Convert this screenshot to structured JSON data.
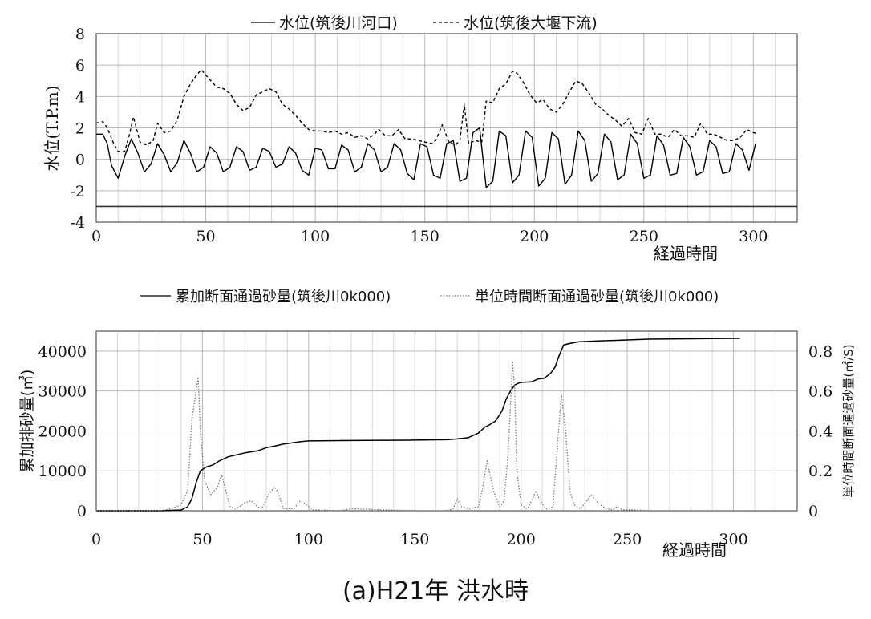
{
  "caption": "(a)H21年 洪水時",
  "chart_data": [
    {
      "type": "line",
      "ylabel": "水位(T.P.m)",
      "xlabel": "経過時間",
      "xlim": [
        0,
        320
      ],
      "ylim": [
        -4,
        8
      ],
      "xticks": [
        0,
        50,
        100,
        150,
        200,
        250,
        300
      ],
      "yticks": [
        -4,
        -2,
        0,
        2,
        4,
        6,
        8
      ],
      "grid": true,
      "legend_position": "top",
      "horizontal_line": -3,
      "series": [
        {
          "name": "水位(筑後川河口)",
          "style": "solid",
          "x": [
            0,
            3,
            5,
            7,
            10,
            13,
            16,
            19,
            22,
            25,
            28,
            31,
            34,
            37,
            40,
            43,
            46,
            49,
            52,
            55,
            58,
            61,
            64,
            67,
            70,
            73,
            76,
            79,
            82,
            85,
            88,
            91,
            94,
            97,
            100,
            103,
            106,
            109,
            112,
            115,
            118,
            121,
            124,
            127,
            130,
            133,
            136,
            139,
            142,
            145,
            148,
            151,
            154,
            157,
            160,
            163,
            166,
            169,
            172,
            175,
            178,
            181,
            184,
            187,
            190,
            193,
            196,
            199,
            202,
            205,
            208,
            211,
            214,
            217,
            220,
            223,
            226,
            229,
            232,
            235,
            238,
            241,
            244,
            247,
            250,
            253,
            256,
            259,
            262,
            265,
            268,
            271,
            274,
            277,
            280,
            283,
            286,
            289,
            292,
            295,
            298,
            301
          ],
          "values": [
            1.6,
            1.6,
            1.0,
            -0.4,
            -1.2,
            0.2,
            1.3,
            0.4,
            -0.8,
            -0.3,
            1.0,
            0.3,
            -0.8,
            -0.2,
            1.2,
            0.4,
            -0.8,
            -0.5,
            0.8,
            0.4,
            -0.8,
            -0.5,
            0.8,
            0.5,
            -0.7,
            -0.5,
            0.7,
            0.5,
            -0.5,
            -0.3,
            0.8,
            0.4,
            -0.7,
            -1.0,
            0.7,
            0.6,
            -0.6,
            -0.6,
            0.9,
            0.6,
            -0.8,
            -0.5,
            1.0,
            0.6,
            -0.8,
            -0.5,
            1.0,
            0.6,
            -0.9,
            -1.3,
            1.0,
            0.8,
            -1.0,
            -1.2,
            1.0,
            1.2,
            -1.4,
            -1.2,
            1.7,
            2.0,
            -1.8,
            -1.4,
            1.8,
            1.5,
            -1.5,
            -1.0,
            1.8,
            1.4,
            -1.7,
            -1.2,
            1.7,
            1.3,
            -1.6,
            -1.0,
            1.8,
            1.2,
            -1.4,
            -0.9,
            1.6,
            1.1,
            -1.3,
            -1.0,
            1.6,
            1.0,
            -1.2,
            -1.0,
            1.5,
            0.9,
            -1.0,
            -0.9,
            1.4,
            0.8,
            -1.0,
            -0.8,
            1.2,
            0.8,
            -0.9,
            -0.8,
            1.0,
            0.6,
            -0.7,
            1.0
          ]
        },
        {
          "name": "水位(筑後大堰下流)",
          "style": "dashed",
          "x": [
            0,
            3,
            5,
            8,
            10,
            13,
            15,
            17,
            20,
            23,
            26,
            28,
            31,
            34,
            37,
            40,
            43,
            46,
            48,
            51,
            55,
            58,
            61,
            64,
            67,
            70,
            73,
            76,
            79,
            82,
            85,
            88,
            91,
            94,
            97,
            100,
            103,
            106,
            109,
            112,
            115,
            118,
            121,
            124,
            127,
            129,
            132,
            135,
            138,
            141,
            144,
            147,
            150,
            153,
            155,
            158,
            161,
            164,
            166,
            168,
            170,
            173,
            176,
            178,
            181,
            184,
            187,
            190,
            192,
            195,
            198,
            201,
            204,
            207,
            210,
            213,
            216,
            219,
            222,
            225,
            228,
            231,
            234,
            237,
            240,
            243,
            246,
            249,
            252,
            255,
            258,
            261,
            264,
            267,
            270,
            273,
            276,
            279,
            282,
            285,
            288,
            291,
            294,
            297,
            300,
            302
          ],
          "values": [
            2.3,
            2.4,
            2.0,
            1.0,
            0.5,
            0.5,
            1.5,
            2.7,
            1.1,
            0.9,
            1.2,
            2.3,
            1.7,
            1.8,
            2.5,
            4.0,
            4.8,
            5.4,
            5.7,
            5.2,
            4.6,
            4.5,
            4.2,
            3.5,
            3.1,
            3.3,
            4.1,
            4.3,
            4.5,
            4.3,
            3.5,
            3.2,
            2.8,
            2.3,
            1.9,
            1.8,
            1.8,
            1.7,
            1.8,
            1.6,
            1.7,
            1.4,
            1.5,
            1.3,
            1.6,
            1.9,
            1.5,
            1.5,
            1.9,
            1.3,
            1.3,
            1.2,
            1.1,
            1.0,
            1.2,
            2.2,
            1.1,
            0.9,
            1.2,
            3.5,
            1.0,
            1.2,
            1.1,
            3.7,
            3.6,
            4.5,
            4.8,
            5.6,
            5.5,
            4.9,
            4.1,
            3.6,
            3.8,
            3.2,
            3.0,
            3.5,
            4.3,
            5.0,
            4.8,
            4.2,
            3.5,
            3.2,
            2.8,
            2.5,
            2.1,
            2.6,
            1.7,
            1.6,
            2.6,
            1.6,
            1.6,
            1.4,
            1.9,
            1.5,
            1.5,
            1.4,
            2.3,
            1.6,
            1.6,
            1.4,
            1.2,
            1.2,
            1.4,
            1.9,
            1.7,
            1.6
          ]
        }
      ]
    },
    {
      "type": "line",
      "ylabel": "累加排砂量(㎥)",
      "y2label": "単位時間断面通過砂量(㎥/S)",
      "xlabel": "経過時間",
      "xlim": [
        0,
        330
      ],
      "ylim": [
        0,
        45000
      ],
      "y2lim": [
        0,
        0.9
      ],
      "xticks": [
        0,
        50,
        100,
        150,
        200,
        250,
        300
      ],
      "yticks": [
        0,
        10000,
        20000,
        30000,
        40000
      ],
      "y2ticks": [
        0,
        0.2,
        0.4,
        0.6,
        0.8
      ],
      "y2ticklabels": [
        "0",
        "0.2",
        "0.4",
        "0.6",
        "0.8"
      ],
      "grid": true,
      "legend_position": "top",
      "series": [
        {
          "name": "累加断面通過砂量(筑後川0k000)",
          "style": "solid",
          "axis": "left",
          "x": [
            0,
            30,
            40,
            43,
            45,
            47,
            49,
            52,
            55,
            58,
            62,
            66,
            70,
            76,
            80,
            84,
            88,
            92,
            96,
            100,
            120,
            150,
            165,
            170,
            175,
            178,
            180,
            183,
            185,
            188,
            191,
            193,
            195,
            197,
            199,
            201,
            205,
            208,
            211,
            214,
            216,
            218,
            220,
            222,
            224,
            227,
            235,
            250,
            260,
            280,
            303
          ],
          "values": [
            0,
            0,
            200,
            1000,
            3000,
            7000,
            10000,
            11000,
            11500,
            12500,
            13500,
            14000,
            14500,
            15000,
            15800,
            16200,
            16700,
            17000,
            17300,
            17500,
            17600,
            17700,
            17800,
            18000,
            18300,
            19000,
            19500,
            21000,
            21500,
            22500,
            25000,
            28000,
            30000,
            31500,
            32000,
            32200,
            32300,
            33000,
            33200,
            34500,
            36000,
            39000,
            41500,
            41800,
            42000,
            42300,
            42500,
            42800,
            43000,
            43100,
            43200
          ]
        },
        {
          "name": "単位時間断面通過砂量(筑後川0k000)",
          "style": "dotted",
          "axis": "right",
          "x": [
            0,
            30,
            35,
            40,
            43,
            45,
            47,
            48,
            49,
            51,
            54,
            57,
            59,
            61,
            63,
            66,
            70,
            73,
            76,
            78,
            81,
            84,
            86,
            88,
            93,
            96,
            99,
            102,
            115,
            120,
            150,
            165,
            168,
            170,
            172,
            175,
            180,
            182,
            184,
            185,
            187,
            190,
            192,
            194,
            196,
            197,
            198,
            200,
            203,
            205,
            207,
            209,
            212,
            215,
            218,
            219,
            221,
            223,
            225,
            228,
            231,
            233,
            236,
            240,
            243,
            245,
            248,
            252,
            260,
            300,
            303
          ],
          "values": [
            0,
            0,
            0.01,
            0.03,
            0.1,
            0.45,
            0.6,
            0.67,
            0.4,
            0.15,
            0.08,
            0.12,
            0.18,
            0.1,
            0.02,
            0.01,
            0.04,
            0.05,
            0.02,
            0.01,
            0.08,
            0.12,
            0.08,
            0.01,
            0.01,
            0.05,
            0.03,
            0.005,
            0,
            0.01,
            0,
            0,
            0.01,
            0.06,
            0.02,
            0.01,
            0.02,
            0.12,
            0.25,
            0.2,
            0.1,
            0.02,
            0.05,
            0.3,
            0.75,
            0.6,
            0.2,
            0.03,
            0.01,
            0.05,
            0.1,
            0.05,
            0.01,
            0.02,
            0.45,
            0.58,
            0.4,
            0.1,
            0.03,
            0.01,
            0.05,
            0.08,
            0.04,
            0.01,
            0.005,
            0.02,
            0.005,
            0.005,
            0,
            0,
            0
          ]
        }
      ]
    }
  ]
}
